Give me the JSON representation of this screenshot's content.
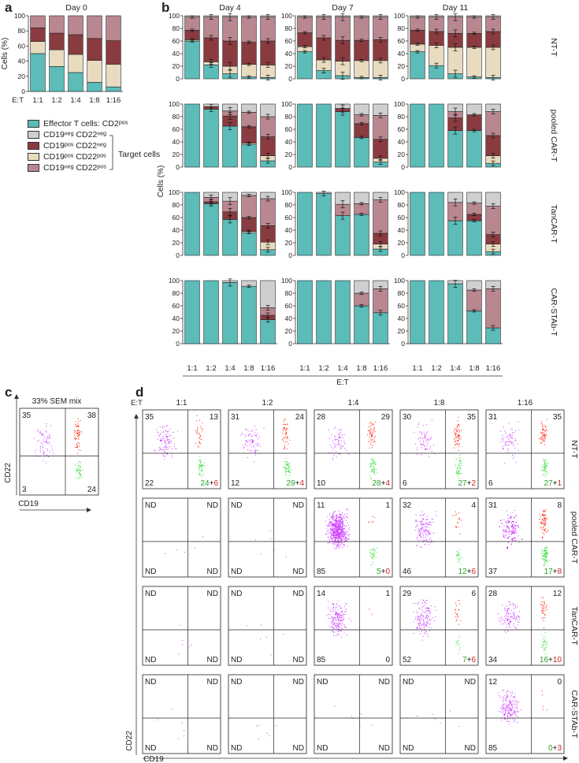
{
  "panel_letters": {
    "a": "a",
    "b": "b",
    "c": "c",
    "d": "d"
  },
  "colors": {
    "effector": "#5bbcb8",
    "neg_neg": "#cfcfcf",
    "pos_neg": "#8a3b40",
    "pos_pos": "#e8dbbf",
    "neg_pos": "#b98790",
    "magenta": "#cc33ff",
    "red": "#ff1a00",
    "green": "#33dd33",
    "num_green": "#2aa02a",
    "num_red": "#cc2222"
  },
  "legend": {
    "items": [
      {
        "key": "effector",
        "label": "Effector T cells: CD2ᵖᵒˢ"
      },
      {
        "key": "neg_neg",
        "label": "CD19ⁿᵉᵍ CD22ⁿᵉᵍ"
      },
      {
        "key": "pos_neg",
        "label": "CD19ᵖᵒˢ CD22ⁿᵉᵍ"
      },
      {
        "key": "pos_pos",
        "label": "CD19ᵖᵒˢ CD22ᵖᵒˢ"
      },
      {
        "key": "neg_pos",
        "label": "CD19ⁿᵉᵍ CD22ᵖᵒˢ"
      }
    ],
    "target_label": "Target cells"
  },
  "chart_data": [
    {
      "type": "bar",
      "subtype": "stacked",
      "panel": "a",
      "title": "Day 0",
      "xlabel": "",
      "xlabel_prefix": "E:T",
      "ylabel": "Cells (%)",
      "ylim": [
        0,
        100
      ],
      "yticks": [
        0,
        20,
        40,
        60,
        80,
        100
      ],
      "categories": [
        "1:1",
        "1:2",
        "1:4",
        "1:8",
        "1:16"
      ],
      "series": [
        {
          "name": "Effector T cells: CD2pos",
          "values": [
            50,
            33,
            25,
            12,
            6
          ]
        },
        {
          "name": "CD19pos CD22pos",
          "values": [
            16,
            22,
            24,
            29,
            30
          ]
        },
        {
          "name": "CD19pos CD22neg",
          "values": [
            18,
            22,
            26,
            29,
            31
          ]
        },
        {
          "name": "CD19neg CD22pos",
          "values": [
            16,
            23,
            25,
            30,
            33
          ]
        },
        {
          "name": "CD19neg CD22neg",
          "values": [
            0,
            0,
            0,
            0,
            0
          ]
        }
      ]
    },
    {
      "type": "bar",
      "subtype": "stacked grid",
      "panel": "b",
      "columns": [
        "Day 4",
        "Day 7",
        "Day 11"
      ],
      "rows": [
        "NT-T",
        "pooled CAR-T",
        "TanCAR-T",
        "CAR-STAb-T"
      ],
      "ylabel": "Cells (%)",
      "xlabel": "E:T",
      "ylim": [
        0,
        100
      ],
      "yticks": [
        0,
        20,
        40,
        60,
        80,
        100
      ],
      "categories": [
        "1:1",
        "1:2",
        "1:4",
        "1:8",
        "1:16"
      ],
      "series_order": [
        "effector",
        "pos_pos",
        "pos_neg",
        "neg_pos",
        "neg_neg"
      ],
      "cells": [
        {
          "row": "NT-T",
          "day": "Day 4",
          "bars": [
            [
              60,
              2,
              15,
              21,
              2
            ],
            [
              22,
              5,
              38,
              33,
              2
            ],
            [
              8,
              12,
              40,
              38,
              2
            ],
            [
              3,
              20,
              35,
              40,
              2
            ],
            [
              2,
              20,
              38,
              38,
              2
            ]
          ]
        },
        {
          "row": "NT-T",
          "day": "Day 7",
          "bars": [
            [
              43,
              8,
              22,
              25,
              2
            ],
            [
              13,
              17,
              35,
              33,
              2
            ],
            [
              5,
              23,
              33,
              37,
              2
            ],
            [
              2,
              27,
              32,
              37,
              2
            ],
            [
              2,
              27,
              33,
              36,
              2
            ]
          ]
        },
        {
          "row": "NT-T",
          "day": "Day 11",
          "bars": [
            [
              43,
              12,
              22,
              21,
              2
            ],
            [
              21,
              32,
              22,
              23,
              2
            ],
            [
              8,
              42,
              22,
              26,
              2
            ],
            [
              3,
              47,
              22,
              26,
              2
            ],
            [
              2,
              48,
              25,
              23,
              2
            ]
          ]
        },
        {
          "row": "pooled CAR-T",
          "day": "Day 4",
          "bars": [
            [
              100,
              0,
              0,
              0,
              0
            ],
            [
              92,
              0,
              4,
              0,
              4
            ],
            [
              65,
              0,
              16,
              8,
              11
            ],
            [
              36,
              2,
              26,
              23,
              13
            ],
            [
              10,
              8,
              30,
              32,
              20
            ]
          ]
        },
        {
          "row": "pooled CAR-T",
          "day": "Day 7",
          "bars": [
            [
              100,
              0,
              0,
              0,
              0
            ],
            [
              100,
              0,
              0,
              0,
              0
            ],
            [
              88,
              0,
              5,
              0,
              7
            ],
            [
              47,
              0,
              22,
              14,
              17
            ],
            [
              8,
              6,
              30,
              38,
              18
            ]
          ]
        },
        {
          "row": "pooled CAR-T",
          "day": "Day 11",
          "bars": [
            [
              100,
              0,
              0,
              0,
              0
            ],
            [
              100,
              0,
              0,
              0,
              0
            ],
            [
              58,
              0,
              20,
              10,
              12
            ],
            [
              58,
              0,
              25,
              0,
              17
            ],
            [
              6,
              12,
              32,
              38,
              12
            ]
          ]
        },
        {
          "row": "TanCAR-T",
          "day": "Day 4",
          "bars": [
            [
              100,
              0,
              0,
              0,
              0
            ],
            [
              82,
              0,
              3,
              7,
              8
            ],
            [
              57,
              0,
              12,
              17,
              14
            ],
            [
              36,
              2,
              22,
              35,
              5
            ],
            [
              9,
              12,
              26,
              43,
              10
            ]
          ]
        },
        {
          "row": "TanCAR-T",
          "day": "Day 7",
          "bars": [
            [
              100,
              0,
              0,
              0,
              0
            ],
            [
              98,
              0,
              0,
              0,
              2
            ],
            [
              63,
              0,
              0,
              18,
              19
            ],
            [
              65,
              0,
              0,
              17,
              18
            ],
            [
              10,
              8,
              17,
              53,
              12
            ]
          ]
        },
        {
          "row": "TanCAR-T",
          "day": "Day 11",
          "bars": [
            [
              100,
              0,
              0,
              0,
              0
            ],
            [
              100,
              0,
              0,
              0,
              0
            ],
            [
              55,
              0,
              0,
              29,
              16
            ],
            [
              55,
              0,
              10,
              18,
              17
            ],
            [
              6,
              12,
              15,
              45,
              22
            ]
          ]
        },
        {
          "row": "CAR-STAb-T",
          "day": "Day 4",
          "bars": [
            [
              100,
              0,
              0,
              0,
              0
            ],
            [
              100,
              0,
              0,
              0,
              0
            ],
            [
              97,
              0,
              0,
              0,
              3
            ],
            [
              91,
              0,
              0,
              0,
              9
            ],
            [
              38,
              0,
              7,
              12,
              43
            ]
          ]
        },
        {
          "row": "CAR-STAb-T",
          "day": "Day 7",
          "bars": [
            [
              100,
              0,
              0,
              0,
              0
            ],
            [
              100,
              0,
              0,
              0,
              0
            ],
            [
              100,
              0,
              0,
              0,
              0
            ],
            [
              60,
              0,
              0,
              20,
              20
            ],
            [
              49,
              0,
              0,
              38,
              13
            ]
          ]
        },
        {
          "row": "CAR-STAb-T",
          "day": "Day 11",
          "bars": [
            [
              100,
              0,
              0,
              0,
              0
            ],
            [
              100,
              0,
              0,
              0,
              0
            ],
            [
              95,
              0,
              0,
              0,
              5
            ],
            [
              52,
              0,
              0,
              33,
              15
            ],
            [
              25,
              0,
              0,
              62,
              13
            ]
          ]
        }
      ]
    },
    {
      "type": "scatter",
      "subtype": "flow cytometry quadrant",
      "panel": "c",
      "title": "33% SEM mix",
      "xlabel": "CD19",
      "ylabel": "CD22",
      "quadrants": {
        "tl": "35",
        "tr": "38",
        "bl": "3",
        "br": "24"
      }
    },
    {
      "type": "scatter",
      "subtype": "flow cytometry quadrant grid",
      "panel": "d",
      "corner_label": "E:T",
      "xlabel": "CD19",
      "ylabel": "CD22",
      "columns": [
        "1:1",
        "1:2",
        "1:4",
        "1:8",
        "1:16"
      ],
      "rows": [
        "NT-T",
        "pooled CAR-T",
        "TanCAR-T",
        "CAR-STAb-T"
      ],
      "cells": [
        {
          "tl": "35",
          "tr": "13",
          "bl": "22",
          "brg": "24",
          "brr": "6"
        },
        {
          "tl": "31",
          "tr": "24",
          "bl": "12",
          "brg": "29",
          "brr": "4"
        },
        {
          "tl": "28",
          "tr": "29",
          "bl": "10",
          "brg": "28",
          "brr": "4"
        },
        {
          "tl": "30",
          "tr": "35",
          "bl": "6",
          "brg": "27",
          "brr": "2"
        },
        {
          "tl": "31",
          "tr": "35",
          "bl": "6",
          "brg": "27",
          "brr": "1"
        },
        {
          "tl": "ND",
          "tr": "ND",
          "bl": "ND",
          "br": "ND"
        },
        {
          "tl": "ND",
          "tr": "ND",
          "bl": "ND",
          "br": "ND"
        },
        {
          "tl": "11",
          "tr": "1",
          "bl": "85",
          "brg": "5",
          "brr": "0"
        },
        {
          "tl": "32",
          "tr": "4",
          "bl": "46",
          "brg": "12",
          "brr": "6"
        },
        {
          "tl": "31",
          "tr": "8",
          "bl": "37",
          "brg": "17",
          "brr": "8"
        },
        {
          "tl": "ND",
          "tr": "ND",
          "bl": "ND",
          "br": "ND"
        },
        {
          "tl": "ND",
          "tr": "ND",
          "bl": "ND",
          "br": "ND"
        },
        {
          "tl": "14",
          "tr": "1",
          "bl": "85",
          "br": "0"
        },
        {
          "tl": "29",
          "tr": "6",
          "bl": "52",
          "brg": "7",
          "brr": "6"
        },
        {
          "tl": "28",
          "tr": "12",
          "bl": "34",
          "brg": "16",
          "brr": "10"
        },
        {
          "tl": "ND",
          "tr": "ND",
          "bl": "ND",
          "br": "ND"
        },
        {
          "tl": "ND",
          "tr": "ND",
          "bl": "ND",
          "br": "ND"
        },
        {
          "tl": "ND",
          "tr": "ND",
          "bl": "ND",
          "br": "ND"
        },
        {
          "tl": "ND",
          "tr": "ND",
          "bl": "ND",
          "br": "ND"
        },
        {
          "tl": "12",
          "tr": "0",
          "bl": "85",
          "brg": "0",
          "brr": "3"
        }
      ]
    }
  ]
}
